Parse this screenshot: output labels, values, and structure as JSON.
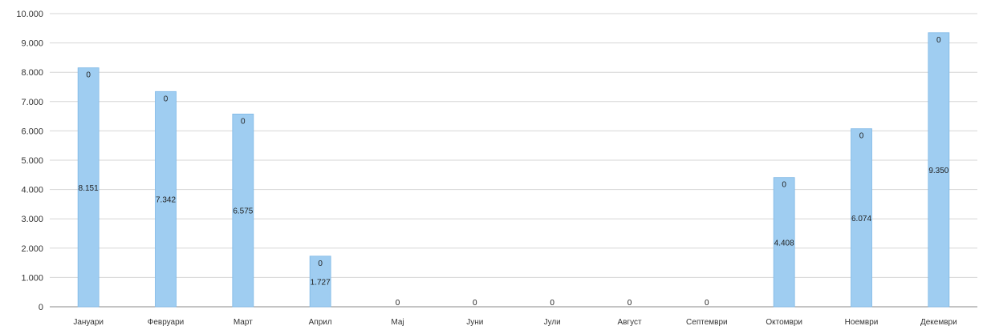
{
  "chart_data": {
    "type": "bar",
    "categories": [
      "Јануари",
      "Февруари",
      "Март",
      "Април",
      "Мај",
      "Јуни",
      "Јули",
      "Август",
      "Септември",
      "Октомври",
      "Ноември",
      "Декември"
    ],
    "series": [
      {
        "values": [
          8151,
          7342,
          6575,
          1727,
          0,
          0,
          0,
          0,
          0,
          4408,
          6074,
          9350
        ],
        "value_labels": [
          "8.151",
          "7.342",
          "6.575",
          "1.727",
          "",
          "",
          "",
          "",
          "",
          "4.408",
          "6.074",
          "9.350"
        ],
        "top_labels": [
          "0",
          "0",
          "0",
          "0",
          "0",
          "0",
          "0",
          "0",
          "0",
          "0",
          "0",
          "0"
        ]
      }
    ],
    "ylim": [
      0,
      10000
    ],
    "yticks": [
      0,
      1000,
      2000,
      3000,
      4000,
      5000,
      6000,
      7000,
      8000,
      9000,
      10000
    ],
    "ytick_labels": [
      "0",
      "1.000",
      "2.000",
      "3.000",
      "4.000",
      "5.000",
      "6.000",
      "7.000",
      "8.000",
      "9.000",
      "10.000"
    ],
    "grid": true,
    "colors": {
      "bar": "#9fcdf1",
      "bar_edge": "#7fb8e6",
      "grid": "#d6d6d6"
    }
  }
}
